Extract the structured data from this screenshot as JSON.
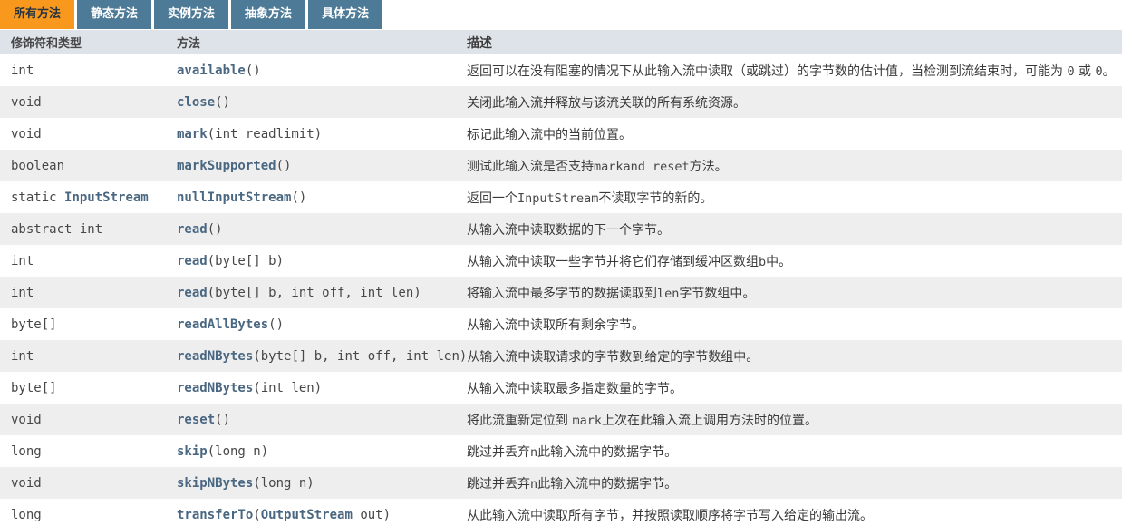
{
  "colors": {
    "active_tab_bg": "#F8981D",
    "active_tab_text": "#253441",
    "inactive_tab_bg": "#4D7A97",
    "inactive_tab_text": "#ffffff",
    "header_bg": "#dee3e9",
    "alt_row_bg": "#eeeeef",
    "link_color": "#4A6782"
  },
  "tabs": [
    {
      "id": "all-methods",
      "label": "所有方法",
      "active": true
    },
    {
      "id": "static-methods",
      "label": "静态方法",
      "active": false
    },
    {
      "id": "instance-methods",
      "label": "实例方法",
      "active": false
    },
    {
      "id": "abstract-methods",
      "label": "抽象方法",
      "active": false
    },
    {
      "id": "concrete-methods",
      "label": "具体方法",
      "active": false
    }
  ],
  "table": {
    "headers": [
      "修饰符和类型",
      "方法",
      "描述"
    ],
    "rows": [
      {
        "type": [
          {
            "t": "int"
          }
        ],
        "method": "available",
        "params": [
          {
            "t": "()"
          }
        ],
        "desc": [
          {
            "t": "返回可以在没有阻塞的情况下从此输入流中读取（或跳过）的字节数的估计值，当检测到流结束时，可能为 "
          },
          {
            "c": "0"
          },
          {
            "t": " 或 "
          },
          {
            "c": "0"
          },
          {
            "t": "。"
          }
        ]
      },
      {
        "type": [
          {
            "t": "void"
          }
        ],
        "method": "close",
        "params": [
          {
            "t": "()"
          }
        ],
        "desc": [
          {
            "t": "关闭此输入流并释放与该流关联的所有系统资源。"
          }
        ]
      },
      {
        "type": [
          {
            "t": "void"
          }
        ],
        "method": "mark",
        "params": [
          {
            "t": "(int readlimit)"
          }
        ],
        "desc": [
          {
            "t": "标记此输入流中的当前位置。"
          }
        ]
      },
      {
        "type": [
          {
            "t": "boolean"
          }
        ],
        "method": "markSupported",
        "params": [
          {
            "t": "()"
          }
        ],
        "desc": [
          {
            "t": "测试此输入流是否支持"
          },
          {
            "c": "markand reset"
          },
          {
            "t": "方法。"
          }
        ]
      },
      {
        "type": [
          {
            "t": "static "
          },
          {
            "l": "InputStream"
          }
        ],
        "method": "nullInputStream",
        "params": [
          {
            "t": "()"
          }
        ],
        "desc": [
          {
            "t": "返回一个"
          },
          {
            "c": "InputStream"
          },
          {
            "t": "不读取字节的新的。"
          }
        ]
      },
      {
        "type": [
          {
            "t": "abstract int"
          }
        ],
        "method": "read",
        "params": [
          {
            "t": "()"
          }
        ],
        "desc": [
          {
            "t": "从输入流中读取数据的下一个字节。"
          }
        ]
      },
      {
        "type": [
          {
            "t": "int"
          }
        ],
        "method": "read",
        "params": [
          {
            "t": "(byte[] b)"
          }
        ],
        "desc": [
          {
            "t": "从输入流中读取一些字节并将它们存储到缓冲区数组"
          },
          {
            "c": "b"
          },
          {
            "t": "中。"
          }
        ]
      },
      {
        "type": [
          {
            "t": "int"
          }
        ],
        "method": "read",
        "params": [
          {
            "t": "(byte[] b, int off, int len)"
          }
        ],
        "desc": [
          {
            "t": "将输入流中最多字节的数据读取到"
          },
          {
            "c": "len"
          },
          {
            "t": "字节数组中。"
          }
        ]
      },
      {
        "type": [
          {
            "t": "byte[]"
          }
        ],
        "method": "readAllBytes",
        "params": [
          {
            "t": "()"
          }
        ],
        "desc": [
          {
            "t": "从输入流中读取所有剩余字节。"
          }
        ]
      },
      {
        "type": [
          {
            "t": "int"
          }
        ],
        "method": "readNBytes",
        "params": [
          {
            "t": "(byte[] b, int off, int len)"
          }
        ],
        "desc": [
          {
            "t": "从输入流中读取请求的字节数到给定的字节数组中。"
          }
        ]
      },
      {
        "type": [
          {
            "t": "byte[]"
          }
        ],
        "method": "readNBytes",
        "params": [
          {
            "t": "(int len)"
          }
        ],
        "desc": [
          {
            "t": "从输入流中读取最多指定数量的字节。"
          }
        ]
      },
      {
        "type": [
          {
            "t": "void"
          }
        ],
        "method": "reset",
        "params": [
          {
            "t": "()"
          }
        ],
        "desc": [
          {
            "t": "将此流重新定位到 "
          },
          {
            "c": "mark"
          },
          {
            "t": "上次在此输入流上调用方法时的位置。"
          }
        ]
      },
      {
        "type": [
          {
            "t": "long"
          }
        ],
        "method": "skip",
        "params": [
          {
            "t": "(long n)"
          }
        ],
        "desc": [
          {
            "t": "跳过并丢弃"
          },
          {
            "c": "n"
          },
          {
            "t": "此输入流中的数据字节。"
          }
        ]
      },
      {
        "type": [
          {
            "t": "void"
          }
        ],
        "method": "skipNBytes",
        "params": [
          {
            "t": "(long n)"
          }
        ],
        "desc": [
          {
            "t": "跳过并丢弃"
          },
          {
            "c": "n"
          },
          {
            "t": "此输入流中的数据字节。"
          }
        ]
      },
      {
        "type": [
          {
            "t": "long"
          }
        ],
        "method": "transferTo",
        "params": [
          {
            "t": "("
          },
          {
            "l": "OutputStream"
          },
          {
            "t": " out)"
          }
        ],
        "desc": [
          {
            "t": "从此输入流中读取所有字节，并按照读取顺序将字节写入给定的输出流。"
          }
        ]
      }
    ]
  }
}
